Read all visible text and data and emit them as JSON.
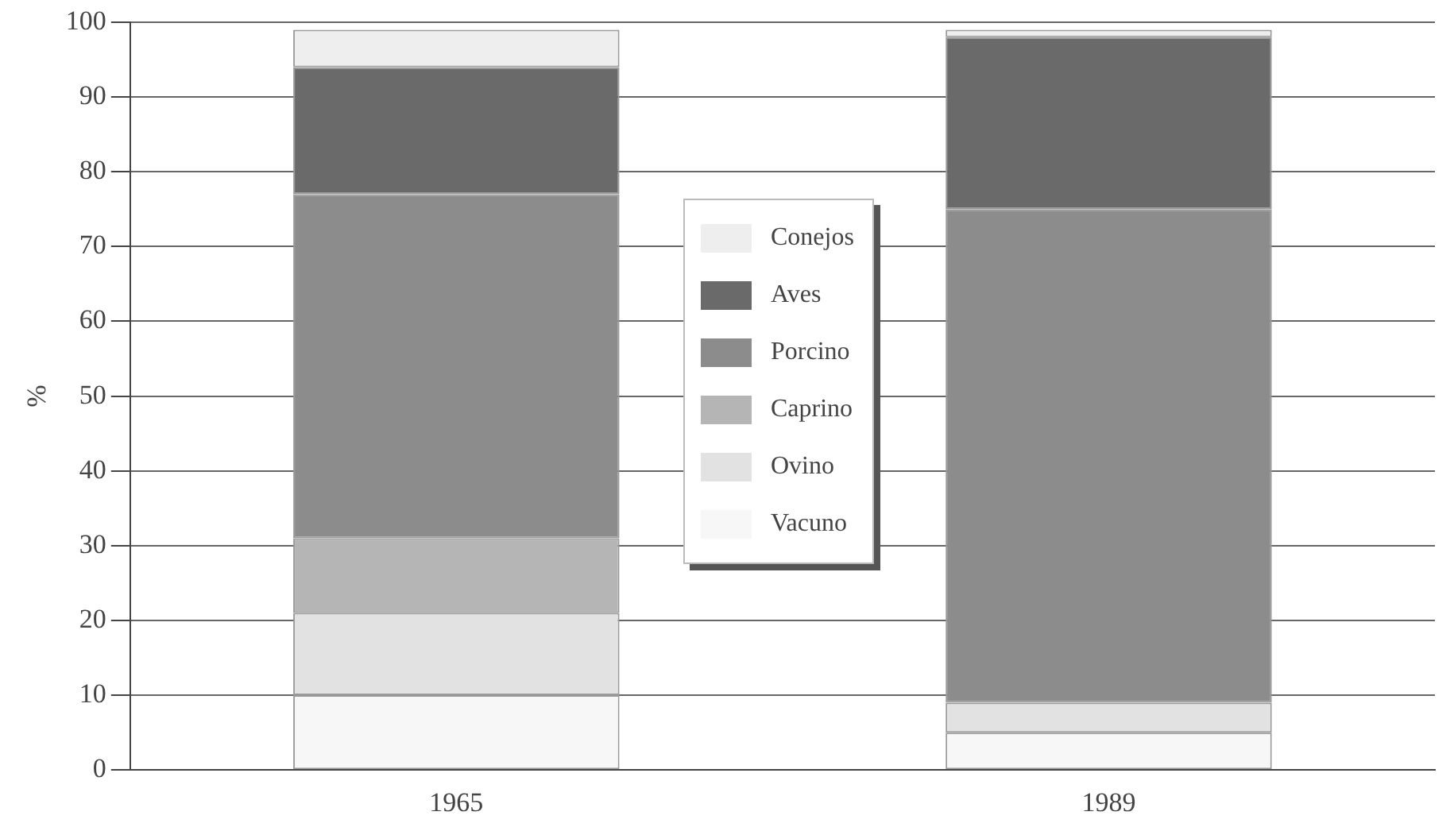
{
  "chart_data": {
    "type": "bar",
    "ylabel": "%",
    "categories": [
      "1965",
      "1989"
    ],
    "stacked": true,
    "series": [
      {
        "name": "Vacuno",
        "color": "#f7f7f7",
        "values": [
          10,
          5
        ]
      },
      {
        "name": "Ovino",
        "color": "#e2e2e2",
        "values": [
          11,
          4
        ]
      },
      {
        "name": "Caprino",
        "color": "#b5b5b5",
        "values": [
          10,
          0
        ]
      },
      {
        "name": "Porcino",
        "color": "#8c8c8c",
        "values": [
          46,
          66
        ]
      },
      {
        "name": "Aves",
        "color": "#6a6a6a",
        "values": [
          17,
          23
        ]
      },
      {
        "name": "Conejos",
        "color": "#eeeeee",
        "values": [
          5,
          1
        ]
      }
    ],
    "ylim": [
      0,
      100
    ],
    "yticks": [
      0,
      10,
      20,
      30,
      40,
      50,
      60,
      70,
      80,
      90,
      100
    ],
    "grid": "y",
    "legend": "center"
  }
}
